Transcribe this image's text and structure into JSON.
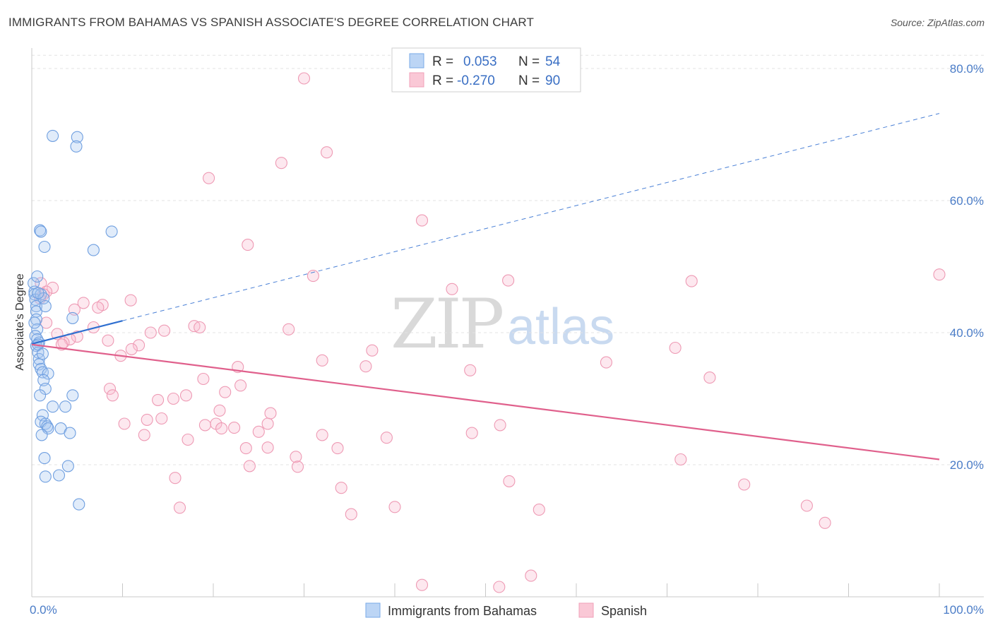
{
  "title": "IMMIGRANTS FROM BAHAMAS VS SPANISH ASSOCIATE'S DEGREE CORRELATION CHART",
  "source": "Source: ZipAtlas.com",
  "watermark": {
    "part1": "ZIP",
    "part2": "atlas"
  },
  "legend_top": [
    {
      "r_label": "R = ",
      "r_value": "0.053",
      "n_label": "N = ",
      "n_value": "54"
    },
    {
      "r_label": "R = ",
      "r_value": "-0.270",
      "n_label": "N = ",
      "n_value": "90"
    }
  ],
  "chart_data": {
    "type": "scatter",
    "title": "IMMIGRANTS FROM BAHAMAS VS SPANISH ASSOCIATE'S DEGREE CORRELATION CHART",
    "xlabel": "",
    "ylabel": "Associate's Degree",
    "xlim": [
      0,
      100
    ],
    "ylim": [
      0,
      85
    ],
    "x_tick_labels": [
      "0.0%",
      "100.0%"
    ],
    "y_ticks": [
      20,
      40,
      60,
      80
    ],
    "y_tick_labels": [
      "20.0%",
      "40.0%",
      "60.0%",
      "80.0%"
    ],
    "grid": true,
    "legend_position": "top-center",
    "series": [
      {
        "name": "Immigrants from Bahamas",
        "color": "#7aaae8",
        "R": 0.053,
        "N": 54,
        "trend": {
          "solid": [
            [
              0,
              38.3
            ],
            [
              10,
              41.8
            ]
          ],
          "dashed": [
            [
              10,
              41.8
            ],
            [
              100,
              73.2
            ]
          ]
        },
        "points": [
          [
            0.2,
            47.5
          ],
          [
            0.3,
            46.2
          ],
          [
            0.3,
            45.8
          ],
          [
            0.4,
            45.0
          ],
          [
            0.5,
            44.0
          ],
          [
            0.5,
            43.2
          ],
          [
            0.5,
            42.0
          ],
          [
            0.6,
            40.5
          ],
          [
            0.4,
            39.5
          ],
          [
            0.6,
            39.0
          ],
          [
            0.8,
            38.5
          ],
          [
            0.5,
            38.0
          ],
          [
            0.7,
            37.0
          ],
          [
            0.8,
            36.0
          ],
          [
            0.8,
            35.2
          ],
          [
            1.0,
            34.5
          ],
          [
            1.2,
            34.0
          ],
          [
            1.8,
            33.8
          ],
          [
            1.3,
            32.8
          ],
          [
            1.5,
            31.5
          ],
          [
            0.9,
            30.5
          ],
          [
            4.5,
            30.5
          ],
          [
            1.2,
            27.5
          ],
          [
            2.3,
            28.8
          ],
          [
            3.7,
            28.8
          ],
          [
            1.0,
            26.5
          ],
          [
            1.5,
            26.2
          ],
          [
            1.7,
            25.8
          ],
          [
            1.8,
            25.5
          ],
          [
            3.2,
            25.5
          ],
          [
            4.2,
            24.8
          ],
          [
            1.1,
            24.5
          ],
          [
            1.4,
            21.0
          ],
          [
            4.0,
            19.8
          ],
          [
            1.5,
            18.2
          ],
          [
            3.0,
            18.4
          ],
          [
            5.2,
            14.0
          ],
          [
            2.3,
            69.8
          ],
          [
            5.0,
            69.6
          ],
          [
            4.9,
            68.2
          ],
          [
            0.9,
            55.5
          ],
          [
            1.0,
            55.3
          ],
          [
            8.8,
            55.3
          ],
          [
            1.4,
            53.0
          ],
          [
            6.8,
            52.5
          ],
          [
            0.6,
            48.5
          ],
          [
            1.0,
            45.8
          ],
          [
            1.3,
            45.2
          ],
          [
            1.5,
            44.0
          ],
          [
            4.5,
            42.2
          ],
          [
            0.7,
            46.0
          ],
          [
            0.3,
            41.5
          ],
          [
            0.7,
            38.2
          ],
          [
            1.2,
            36.8
          ]
        ]
      },
      {
        "name": "Spanish",
        "color": "#f0a0b8",
        "R": -0.27,
        "N": 90,
        "trend": {
          "solid": [
            [
              0,
              38.2
            ],
            [
              100,
              20.8
            ]
          ]
        },
        "points": [
          [
            30.0,
            78.5
          ],
          [
            32.5,
            67.3
          ],
          [
            27.5,
            65.7
          ],
          [
            19.5,
            63.4
          ],
          [
            43.0,
            57.0
          ],
          [
            23.8,
            53.3
          ],
          [
            31.0,
            48.6
          ],
          [
            52.5,
            47.9
          ],
          [
            46.3,
            46.6
          ],
          [
            72.7,
            47.8
          ],
          [
            100.0,
            48.8
          ],
          [
            1.0,
            47.5
          ],
          [
            2.3,
            46.8
          ],
          [
            1.6,
            46.2
          ],
          [
            1.3,
            45.8
          ],
          [
            0.9,
            45.2
          ],
          [
            10.9,
            44.9
          ],
          [
            5.7,
            44.5
          ],
          [
            7.8,
            44.2
          ],
          [
            7.3,
            43.8
          ],
          [
            4.7,
            43.5
          ],
          [
            1.6,
            41.5
          ],
          [
            17.9,
            41.0
          ],
          [
            18.5,
            40.8
          ],
          [
            6.8,
            40.8
          ],
          [
            14.6,
            40.3
          ],
          [
            13.1,
            40.0
          ],
          [
            28.3,
            40.5
          ],
          [
            2.8,
            39.8
          ],
          [
            5.0,
            39.4
          ],
          [
            4.2,
            39.0
          ],
          [
            8.4,
            38.8
          ],
          [
            3.5,
            38.5
          ],
          [
            3.3,
            38.2
          ],
          [
            11.8,
            38.1
          ],
          [
            11.0,
            37.5
          ],
          [
            37.5,
            37.3
          ],
          [
            70.9,
            37.7
          ],
          [
            9.8,
            36.5
          ],
          [
            32.0,
            35.8
          ],
          [
            63.3,
            35.5
          ],
          [
            22.7,
            34.8
          ],
          [
            36.8,
            34.9
          ],
          [
            48.3,
            34.3
          ],
          [
            18.9,
            33.0
          ],
          [
            74.7,
            33.2
          ],
          [
            23.0,
            32.0
          ],
          [
            8.6,
            31.5
          ],
          [
            21.3,
            31.0
          ],
          [
            8.9,
            30.5
          ],
          [
            17.0,
            30.5
          ],
          [
            15.6,
            30.0
          ],
          [
            13.9,
            29.8
          ],
          [
            20.7,
            28.2
          ],
          [
            26.3,
            27.8
          ],
          [
            14.3,
            27.0
          ],
          [
            12.7,
            26.8
          ],
          [
            20.3,
            26.2
          ],
          [
            10.2,
            26.2
          ],
          [
            19.1,
            26.0
          ],
          [
            26.0,
            26.2
          ],
          [
            51.6,
            26.0
          ],
          [
            22.3,
            25.6
          ],
          [
            20.9,
            25.5
          ],
          [
            25.0,
            25.0
          ],
          [
            48.5,
            24.8
          ],
          [
            12.4,
            24.5
          ],
          [
            32.0,
            24.5
          ],
          [
            39.1,
            24.1
          ],
          [
            17.2,
            23.8
          ],
          [
            23.6,
            22.5
          ],
          [
            26.0,
            22.6
          ],
          [
            33.7,
            22.5
          ],
          [
            29.1,
            21.2
          ],
          [
            71.5,
            20.8
          ],
          [
            24.0,
            19.8
          ],
          [
            29.3,
            19.7
          ],
          [
            15.8,
            18.0
          ],
          [
            52.6,
            17.5
          ],
          [
            78.5,
            17.0
          ],
          [
            34.1,
            16.5
          ],
          [
            16.3,
            13.5
          ],
          [
            40.0,
            13.6
          ],
          [
            55.9,
            13.2
          ],
          [
            35.2,
            12.5
          ],
          [
            85.4,
            13.8
          ],
          [
            87.4,
            11.2
          ],
          [
            43.0,
            1.8
          ],
          [
            51.5,
            1.5
          ],
          [
            55.0,
            3.2
          ]
        ]
      }
    ]
  }
}
